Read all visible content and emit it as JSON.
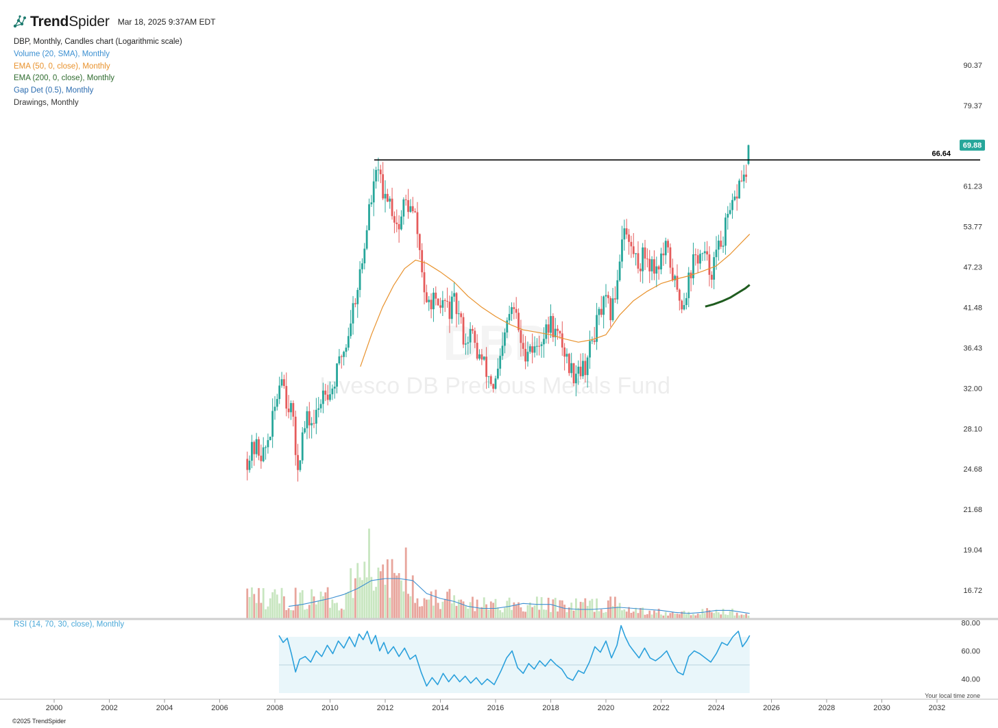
{
  "header": {
    "brand_light": "Trend",
    "brand_rest": "Spider",
    "timestamp": "Mar 18, 2025 9:37AM EDT",
    "logo_icon": "network-nodes-icon"
  },
  "legend": {
    "title": "DBP, Monthly, Candles chart (Logarithmic scale)",
    "items": [
      {
        "label": "Volume (20, SMA), Monthly",
        "color": "#3b8fd1"
      },
      {
        "label": "EMA (50, 0, close), Monthly",
        "color": "#e8912b"
      },
      {
        "label": "EMA (200, 0, close), Monthly",
        "color": "#2e6b2e"
      },
      {
        "label": "Gap Det (0.5), Monthly",
        "color": "#2b6cb0"
      },
      {
        "label": "Drawings, Monthly",
        "color": "#333333"
      }
    ]
  },
  "watermark": {
    "ticker": "DBP",
    "name": "Invesco DB Precious Metals Fund"
  },
  "rsi_label": "RSI (14, 70, 30, close), Monthly",
  "footer": "©2025 TrendSpider",
  "timezone_note": "Your local time zone",
  "colors": {
    "up": "#26a69a",
    "down": "#e55b5b",
    "ema50": "#e8912b",
    "ema200": "#1f5c1f",
    "vol_up": "#c8e6c0",
    "vol_down": "#e8a59c",
    "vol_sma": "#3b8fd1",
    "rsi": "#2aa0dc",
    "rsi_band": "#e9f6fa",
    "price_badge": "#26a69a"
  },
  "chart_data": {
    "type": "candlestick",
    "scale": "log",
    "y_ticks": [
      "90.37",
      "79.37",
      "61.23",
      "53.77",
      "47.23",
      "41.48",
      "36.43",
      "32.00",
      "28.10",
      "24.68",
      "21.68",
      "19.04",
      "16.72"
    ],
    "x_ticks": [
      "2000",
      "2002",
      "2004",
      "2006",
      "2008",
      "2010",
      "2012",
      "2014",
      "2016",
      "2018",
      "2020",
      "2022",
      "2024",
      "2026",
      "2028",
      "2030",
      "2032"
    ],
    "last_price": "69.88",
    "resistance_line": {
      "value": "66.64",
      "from": "2011.6",
      "to": "2034"
    },
    "close_path": [
      [
        2007.0,
        25.5
      ],
      [
        2007.3,
        26.5
      ],
      [
        2007.6,
        25.8
      ],
      [
        2007.9,
        28.5
      ],
      [
        2008.1,
        31.5
      ],
      [
        2008.25,
        34.0
      ],
      [
        2008.4,
        31.0
      ],
      [
        2008.6,
        30.0
      ],
      [
        2008.75,
        26.0
      ],
      [
        2008.85,
        25.0
      ],
      [
        2009.0,
        27.5
      ],
      [
        2009.2,
        29.0
      ],
      [
        2009.4,
        28.5
      ],
      [
        2009.6,
        30.0
      ],
      [
        2009.8,
        32.5
      ],
      [
        2010.0,
        31.5
      ],
      [
        2010.2,
        33.0
      ],
      [
        2010.4,
        35.5
      ],
      [
        2010.6,
        37.0
      ],
      [
        2010.8,
        41.0
      ],
      [
        2011.0,
        44.5
      ],
      [
        2011.2,
        48.5
      ],
      [
        2011.4,
        56.5
      ],
      [
        2011.6,
        61.0
      ],
      [
        2011.75,
        66.0
      ],
      [
        2011.9,
        58.0
      ],
      [
        2012.1,
        60.0
      ],
      [
        2012.3,
        56.0
      ],
      [
        2012.5,
        53.5
      ],
      [
        2012.7,
        58.5
      ],
      [
        2012.9,
        57.0
      ],
      [
        2013.1,
        55.0
      ],
      [
        2013.3,
        48.0
      ],
      [
        2013.5,
        41.0
      ],
      [
        2013.7,
        43.0
      ],
      [
        2013.9,
        40.5
      ],
      [
        2014.1,
        42.5
      ],
      [
        2014.3,
        41.0
      ],
      [
        2014.5,
        42.0
      ],
      [
        2014.7,
        40.0
      ],
      [
        2014.9,
        37.0
      ],
      [
        2015.1,
        38.5
      ],
      [
        2015.3,
        36.0
      ],
      [
        2015.5,
        35.0
      ],
      [
        2015.7,
        33.5
      ],
      [
        2015.95,
        32.0
      ],
      [
        2016.2,
        35.0
      ],
      [
        2016.45,
        40.0
      ],
      [
        2016.65,
        41.5
      ],
      [
        2016.85,
        38.5
      ],
      [
        2017.0,
        35.5
      ],
      [
        2017.2,
        37.0
      ],
      [
        2017.4,
        36.0
      ],
      [
        2017.6,
        37.5
      ],
      [
        2017.8,
        38.0
      ],
      [
        2018.0,
        39.5
      ],
      [
        2018.2,
        38.0
      ],
      [
        2018.4,
        37.0
      ],
      [
        2018.6,
        35.0
      ],
      [
        2018.8,
        33.5
      ],
      [
        2019.0,
        34.5
      ],
      [
        2019.2,
        34.0
      ],
      [
        2019.4,
        36.0
      ],
      [
        2019.6,
        38.5
      ],
      [
        2019.8,
        41.0
      ],
      [
        2020.0,
        42.0
      ],
      [
        2020.2,
        40.5
      ],
      [
        2020.4,
        45.0
      ],
      [
        2020.55,
        51.0
      ],
      [
        2020.65,
        55.0
      ],
      [
        2020.8,
        51.0
      ],
      [
        2021.0,
        49.5
      ],
      [
        2021.2,
        47.5
      ],
      [
        2021.4,
        49.5
      ],
      [
        2021.6,
        48.0
      ],
      [
        2021.8,
        47.0
      ],
      [
        2022.0,
        48.5
      ],
      [
        2022.2,
        50.0
      ],
      [
        2022.4,
        46.5
      ],
      [
        2022.6,
        43.0
      ],
      [
        2022.8,
        42.0
      ],
      [
        2023.0,
        45.5
      ],
      [
        2023.2,
        48.5
      ],
      [
        2023.4,
        49.0
      ],
      [
        2023.6,
        48.5
      ],
      [
        2023.8,
        46.5
      ],
      [
        2024.0,
        49.0
      ],
      [
        2024.2,
        51.5
      ],
      [
        2024.4,
        54.5
      ],
      [
        2024.6,
        57.0
      ],
      [
        2024.8,
        61.0
      ],
      [
        2024.95,
        64.0
      ],
      [
        2025.05,
        61.5
      ],
      [
        2025.15,
        66.0
      ],
      [
        2025.21,
        69.88
      ]
    ],
    "ema50_path": [
      [
        2011.1,
        34.3
      ],
      [
        2011.5,
        38.0
      ],
      [
        2011.9,
        41.5
      ],
      [
        2012.3,
        44.5
      ],
      [
        2012.7,
        47.0
      ],
      [
        2013.1,
        48.3
      ],
      [
        2013.5,
        47.8
      ],
      [
        2014.0,
        46.5
      ],
      [
        2014.5,
        45.0
      ],
      [
        2015.0,
        43.0
      ],
      [
        2015.5,
        41.5
      ],
      [
        2016.0,
        40.3
      ],
      [
        2016.5,
        39.3
      ],
      [
        2017.0,
        38.6
      ],
      [
        2017.5,
        38.3
      ],
      [
        2018.0,
        38.0
      ],
      [
        2018.5,
        37.5
      ],
      [
        2019.0,
        37.1
      ],
      [
        2019.5,
        37.4
      ],
      [
        2020.0,
        38.0
      ],
      [
        2020.5,
        40.5
      ],
      [
        2021.0,
        42.4
      ],
      [
        2021.5,
        43.7
      ],
      [
        2022.0,
        44.8
      ],
      [
        2022.5,
        45.4
      ],
      [
        2023.0,
        45.9
      ],
      [
        2023.5,
        46.6
      ],
      [
        2024.0,
        47.4
      ],
      [
        2024.5,
        49.2
      ],
      [
        2025.21,
        52.5
      ]
    ],
    "ema200_path": [
      [
        2023.6,
        41.6
      ],
      [
        2023.9,
        41.9
      ],
      [
        2024.2,
        42.3
      ],
      [
        2024.5,
        42.8
      ],
      [
        2024.8,
        43.5
      ],
      [
        2025.05,
        44.1
      ],
      [
        2025.21,
        44.6
      ]
    ],
    "volume_sma_path": [
      [
        2008.5,
        0.12
      ],
      [
        2009.0,
        0.14
      ],
      [
        2009.5,
        0.17
      ],
      [
        2010.0,
        0.2
      ],
      [
        2010.5,
        0.24
      ],
      [
        2011.0,
        0.3
      ],
      [
        2011.5,
        0.38
      ],
      [
        2012.0,
        0.4
      ],
      [
        2012.5,
        0.4
      ],
      [
        2013.0,
        0.38
      ],
      [
        2013.5,
        0.25
      ],
      [
        2014.0,
        0.2
      ],
      [
        2014.5,
        0.17
      ],
      [
        2015.0,
        0.12
      ],
      [
        2015.5,
        0.1
      ],
      [
        2016.0,
        0.1
      ],
      [
        2016.5,
        0.12
      ],
      [
        2017.0,
        0.15
      ],
      [
        2017.5,
        0.14
      ],
      [
        2018.0,
        0.14
      ],
      [
        2018.5,
        0.1
      ],
      [
        2019.0,
        0.09
      ],
      [
        2019.5,
        0.09
      ],
      [
        2020.0,
        0.1
      ],
      [
        2020.5,
        0.11
      ],
      [
        2021.0,
        0.1
      ],
      [
        2021.5,
        0.09
      ],
      [
        2022.0,
        0.08
      ],
      [
        2022.5,
        0.06
      ],
      [
        2023.0,
        0.05
      ],
      [
        2023.5,
        0.06
      ],
      [
        2024.0,
        0.08
      ],
      [
        2024.5,
        0.08
      ],
      [
        2025.21,
        0.05
      ]
    ],
    "rsi": {
      "y_ticks": [
        "80.00",
        "60.00",
        "40.00"
      ],
      "overbought": 70,
      "oversold": 30,
      "path": [
        [
          2008.15,
          71
        ],
        [
          2008.3,
          66
        ],
        [
          2008.45,
          69
        ],
        [
          2008.6,
          58
        ],
        [
          2008.75,
          45
        ],
        [
          2008.9,
          54
        ],
        [
          2009.1,
          56
        ],
        [
          2009.3,
          52
        ],
        [
          2009.5,
          60
        ],
        [
          2009.7,
          56
        ],
        [
          2009.9,
          64
        ],
        [
          2010.1,
          58
        ],
        [
          2010.3,
          67
        ],
        [
          2010.5,
          62
        ],
        [
          2010.7,
          70
        ],
        [
          2010.9,
          63
        ],
        [
          2011.05,
          72
        ],
        [
          2011.2,
          68
        ],
        [
          2011.35,
          74
        ],
        [
          2011.5,
          65
        ],
        [
          2011.65,
          71
        ],
        [
          2011.8,
          60
        ],
        [
          2011.95,
          66
        ],
        [
          2012.1,
          58
        ],
        [
          2012.3,
          63
        ],
        [
          2012.5,
          56
        ],
        [
          2012.7,
          62
        ],
        [
          2012.9,
          54
        ],
        [
          2013.1,
          57
        ],
        [
          2013.3,
          45
        ],
        [
          2013.5,
          35
        ],
        [
          2013.7,
          41
        ],
        [
          2013.9,
          36
        ],
        [
          2014.1,
          44
        ],
        [
          2014.3,
          38
        ],
        [
          2014.5,
          43
        ],
        [
          2014.7,
          38
        ],
        [
          2014.9,
          42
        ],
        [
          2015.1,
          37
        ],
        [
          2015.3,
          41
        ],
        [
          2015.5,
          36
        ],
        [
          2015.7,
          40
        ],
        [
          2015.95,
          36
        ],
        [
          2016.2,
          46
        ],
        [
          2016.4,
          55
        ],
        [
          2016.6,
          60
        ],
        [
          2016.8,
          48
        ],
        [
          2017.0,
          44
        ],
        [
          2017.2,
          51
        ],
        [
          2017.4,
          47
        ],
        [
          2017.6,
          53
        ],
        [
          2017.8,
          49
        ],
        [
          2018.0,
          54
        ],
        [
          2018.2,
          50
        ],
        [
          2018.4,
          47
        ],
        [
          2018.6,
          41
        ],
        [
          2018.8,
          39
        ],
        [
          2019.0,
          46
        ],
        [
          2019.2,
          44
        ],
        [
          2019.4,
          52
        ],
        [
          2019.6,
          63
        ],
        [
          2019.8,
          59
        ],
        [
          2020.0,
          67
        ],
        [
          2020.2,
          55
        ],
        [
          2020.4,
          64
        ],
        [
          2020.55,
          78
        ],
        [
          2020.7,
          70
        ],
        [
          2020.85,
          64
        ],
        [
          2021.0,
          60
        ],
        [
          2021.2,
          55
        ],
        [
          2021.4,
          62
        ],
        [
          2021.6,
          55
        ],
        [
          2021.8,
          53
        ],
        [
          2022.0,
          56
        ],
        [
          2022.2,
          60
        ],
        [
          2022.4,
          52
        ],
        [
          2022.6,
          45
        ],
        [
          2022.8,
          43
        ],
        [
          2023.0,
          56
        ],
        [
          2023.2,
          60
        ],
        [
          2023.4,
          58
        ],
        [
          2023.6,
          55
        ],
        [
          2023.8,
          52
        ],
        [
          2024.0,
          58
        ],
        [
          2024.2,
          66
        ],
        [
          2024.4,
          64
        ],
        [
          2024.6,
          70
        ],
        [
          2024.8,
          74
        ],
        [
          2024.95,
          63
        ],
        [
          2025.1,
          67
        ],
        [
          2025.21,
          71
        ]
      ]
    }
  }
}
